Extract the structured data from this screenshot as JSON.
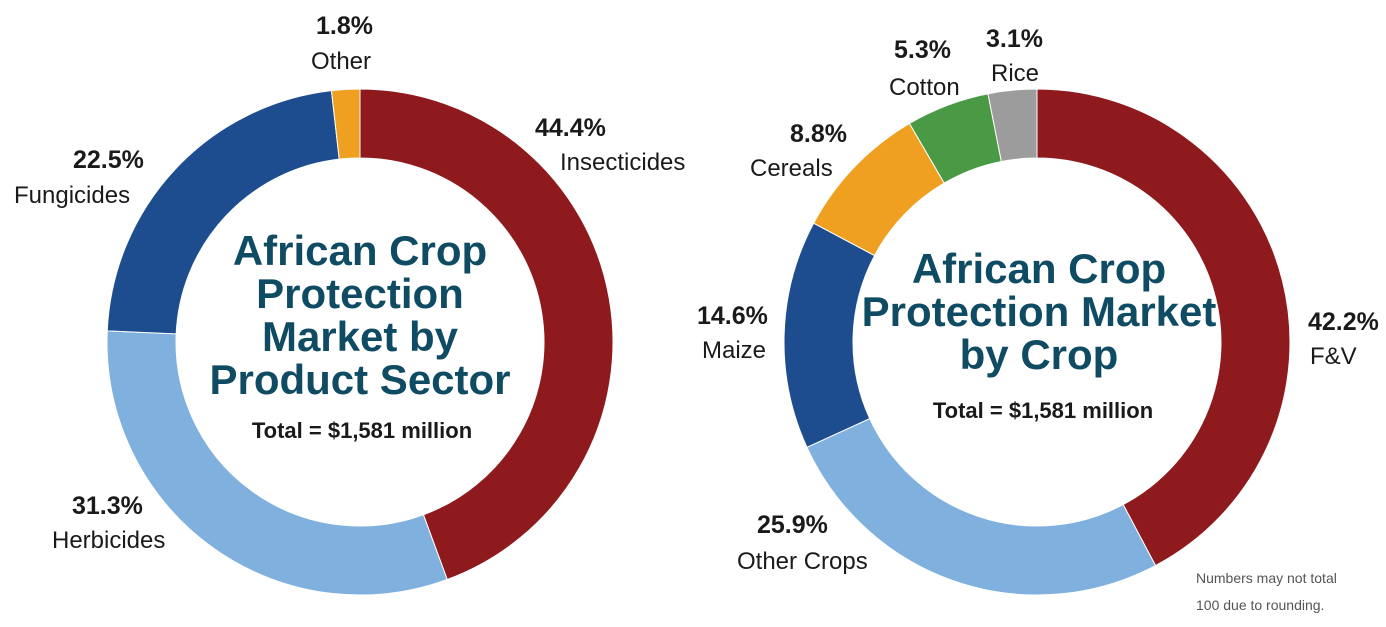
{
  "chart_data": [
    {
      "type": "pie",
      "variant": "donut",
      "title_lines": [
        "African Crop",
        "Protection",
        "Market by",
        "Product Sector"
      ],
      "subtitle": "Total = $1,581 million",
      "slices": [
        {
          "label": "Insecticides",
          "value": 44.4,
          "value_label": "44.4%",
          "color": "#8e1a1d"
        },
        {
          "label": "Herbicides",
          "value": 31.3,
          "value_label": "31.3%",
          "color": "#7fb0de"
        },
        {
          "label": "Fungicides",
          "value": 22.5,
          "value_label": "22.5%",
          "color": "#1e4d8f"
        },
        {
          "label": "Other",
          "value": 1.8,
          "value_label": "1.8%",
          "color": "#f0a020"
        }
      ]
    },
    {
      "type": "pie",
      "variant": "donut",
      "title_lines": [
        "African Crop",
        "Protection Market",
        "by Crop"
      ],
      "subtitle": "Total = $1,581 million",
      "slices": [
        {
          "label": "F&V",
          "value": 42.2,
          "value_label": "42.2%",
          "color": "#8e1a1d"
        },
        {
          "label": "Other Crops",
          "value": 25.9,
          "value_label": "25.9%",
          "color": "#7fb0de"
        },
        {
          "label": "Maize",
          "value": 14.6,
          "value_label": "14.6%",
          "color": "#1e4d8f"
        },
        {
          "label": "Cereals",
          "value": 8.8,
          "value_label": "8.8%",
          "color": "#f0a020"
        },
        {
          "label": "Cotton",
          "value": 5.3,
          "value_label": "5.3%",
          "color": "#4a9a45"
        },
        {
          "label": "Rice",
          "value": 3.1,
          "value_label": "3.1%",
          "color": "#9c9c9c"
        }
      ]
    }
  ],
  "footnote": [
    "Numbers may not total",
    "100 due to rounding."
  ]
}
